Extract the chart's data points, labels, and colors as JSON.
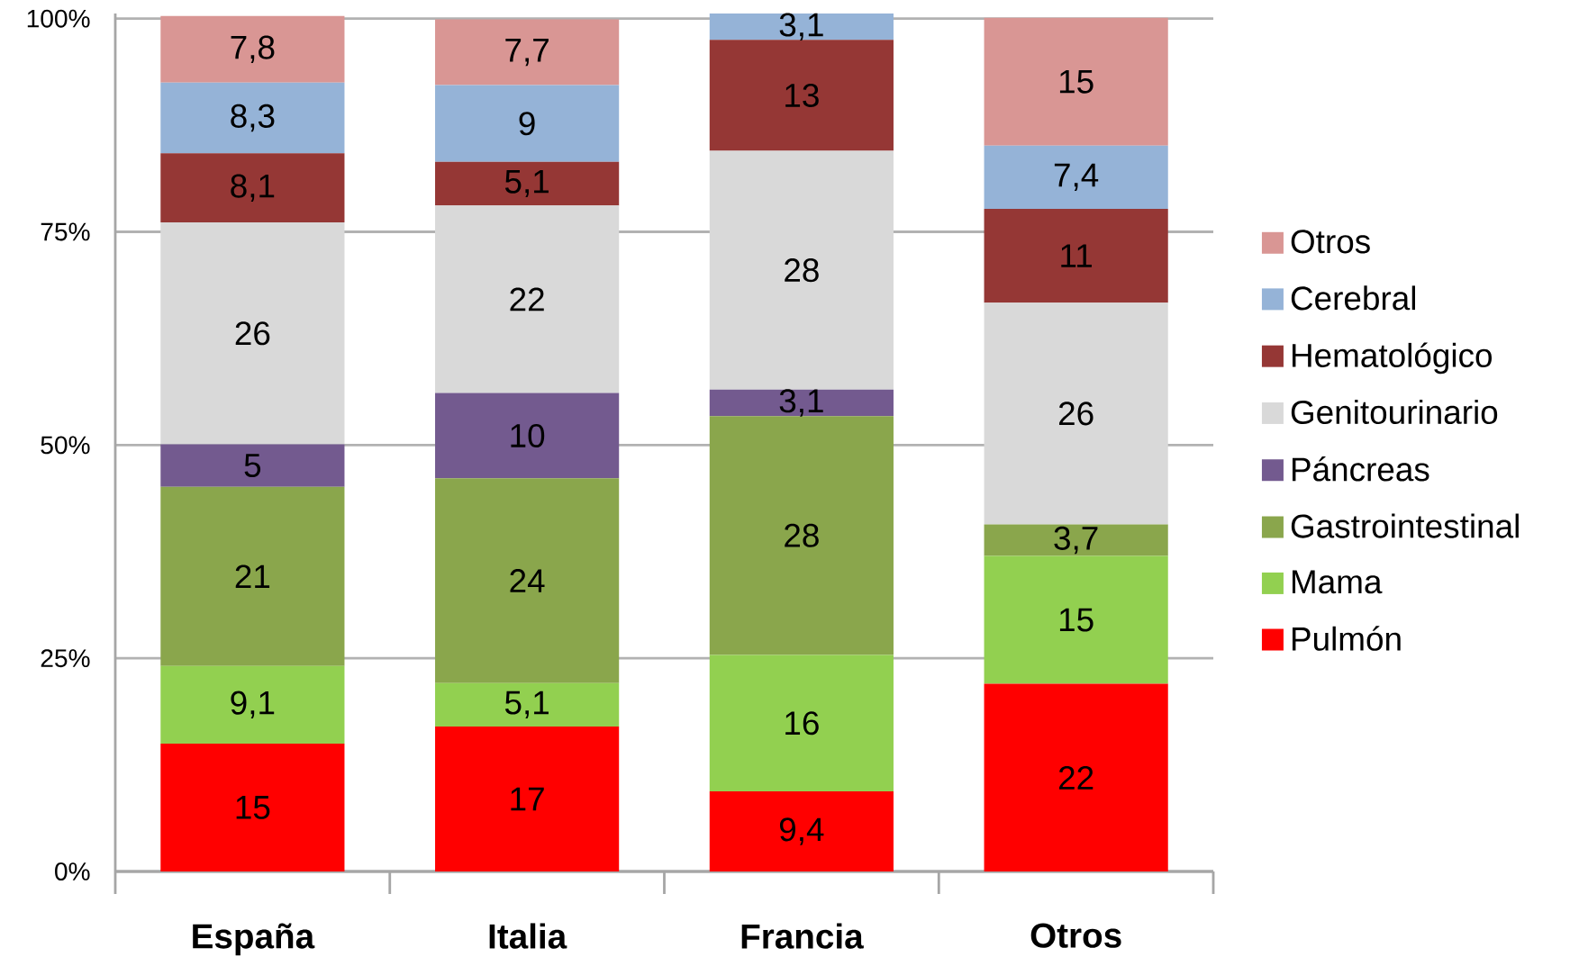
{
  "chart_data": {
    "type": "bar",
    "stacked": true,
    "categories": [
      "España",
      "Italia",
      "Francia",
      "Otros"
    ],
    "series": [
      {
        "name": "Pulmón",
        "color": "#ff0000",
        "values": [
          15,
          17,
          9.4,
          22
        ],
        "value_labels": [
          "15",
          "17",
          "9,4",
          "22"
        ]
      },
      {
        "name": "Mama",
        "color": "#92d050",
        "values": [
          9.1,
          5.1,
          16,
          15
        ],
        "value_labels": [
          "9,1",
          "5,1",
          "16",
          "15"
        ]
      },
      {
        "name": "Gastrointestinal",
        "color": "#8aa64c",
        "values": [
          21,
          24,
          28,
          3.7
        ],
        "value_labels": [
          "21",
          "24",
          "28",
          "3,7"
        ]
      },
      {
        "name": "Páncreas",
        "color": "#735a8f",
        "values": [
          5,
          10,
          3.1,
          null
        ],
        "value_labels": [
          "5",
          "10",
          "3,1",
          null
        ]
      },
      {
        "name": "Genitourinario",
        "color": "#d9d9d9",
        "values": [
          26,
          22,
          28,
          26
        ],
        "value_labels": [
          "26",
          "22",
          "28",
          "26"
        ]
      },
      {
        "name": "Hematológico",
        "color": "#953735",
        "values": [
          8.1,
          5.1,
          13,
          11
        ],
        "value_labels": [
          "8,1",
          "5,1",
          "13",
          "11"
        ]
      },
      {
        "name": "Cerebral",
        "color": "#95b3d7",
        "values": [
          8.3,
          9,
          3.1,
          7.4
        ],
        "value_labels": [
          "8,3",
          "9",
          "3,1",
          "7,4"
        ]
      },
      {
        "name": "Otros",
        "color": "#d99694",
        "values": [
          7.8,
          7.7,
          null,
          15
        ],
        "value_labels": [
          "7,8",
          "7,7",
          null,
          "15"
        ]
      }
    ],
    "ylim": [
      0,
      100.6
    ],
    "yticks": [
      {
        "value": 0,
        "label": "0%"
      },
      {
        "value": 25,
        "label": "25%"
      },
      {
        "value": 50,
        "label": "50%"
      },
      {
        "value": 75,
        "label": "75%"
      },
      {
        "value": 100,
        "label": "100%"
      }
    ],
    "grid": "y",
    "legend": "right"
  }
}
